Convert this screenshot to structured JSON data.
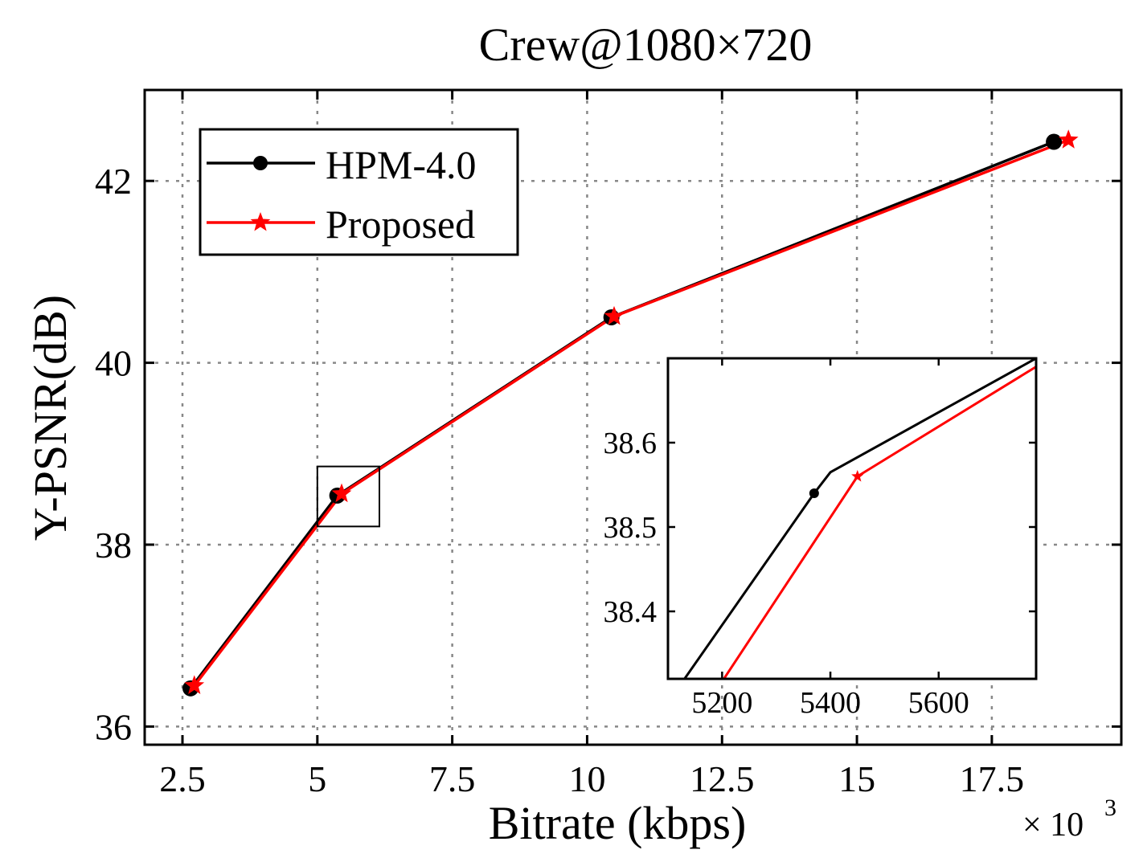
{
  "chart_data": {
    "type": "line",
    "title": "Crew@1080×720",
    "xlabel": "Bitrate (kbps)",
    "ylabel": "Y-PSNR(dB)",
    "x_multiplier_label": "× 10",
    "x_multiplier_exponent": "3",
    "xlim": [
      1.8,
      19.9
    ],
    "ylim": [
      35.8,
      43.0
    ],
    "xticks": [
      2.5,
      5,
      7.5,
      10,
      12.5,
      15,
      17.5
    ],
    "xtick_labels": [
      "2.5",
      "5",
      "7.5",
      "10",
      "12.5",
      "15",
      "17.5"
    ],
    "yticks": [
      36,
      38,
      40,
      42
    ],
    "ytick_labels": [
      "36",
      "38",
      "40",
      "42"
    ],
    "grid": true,
    "legend_position": "top-left",
    "series": [
      {
        "name": "HPM-4.0",
        "color": "#000000",
        "marker": "circle",
        "x": [
          2.65,
          5.37,
          10.45,
          18.65
        ],
        "y": [
          36.42,
          38.54,
          40.5,
          42.43
        ]
      },
      {
        "name": "Proposed",
        "color": "#ff0000",
        "marker": "star",
        "x": [
          2.72,
          5.45,
          10.5,
          18.92
        ],
        "y": [
          36.45,
          38.56,
          40.51,
          42.45
        ]
      }
    ],
    "zoom_region": {
      "xlim": [
        5.0,
        6.15
      ],
      "ylim": [
        38.2,
        38.86
      ]
    },
    "inset": {
      "xlim": [
        5100,
        5780
      ],
      "ylim": [
        38.32,
        38.7
      ],
      "xticks": [
        5200,
        5400,
        5600
      ],
      "xtick_labels": [
        "5200",
        "5400",
        "5600"
      ],
      "yticks": [
        38.4,
        38.5,
        38.6
      ],
      "ytick_labels": [
        "38.4",
        "38.5",
        "38.6"
      ],
      "series": [
        {
          "name": "HPM-4.0",
          "color": "#000000",
          "marker": "circle",
          "x": [
            5000,
            5370,
            5400,
            5780
          ],
          "y": [
            38.2,
            38.54,
            38.565,
            38.7
          ]
        },
        {
          "name": "Proposed",
          "color": "#ff0000",
          "marker": "star",
          "x": [
            5080,
            5450,
            5780
          ],
          "y": [
            38.2,
            38.56,
            38.69
          ]
        }
      ]
    }
  }
}
